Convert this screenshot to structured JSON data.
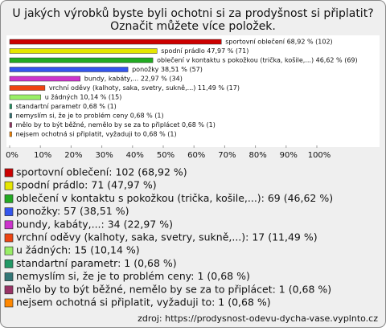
{
  "chart_data": {
    "type": "hbar",
    "title": [
      "U jakých výrobků byste byli ochotni si za prodyšnost si připlatit?",
      "Označit můžete více položek."
    ],
    "values": [
      68.92,
      47.97,
      46.62,
      38.51,
      22.97,
      11.49,
      10.14,
      0.68,
      0.68,
      0.68,
      0.68
    ],
    "value_labels": [
      "sportovní oblečení 68,92 % (102)",
      "spodní prádlo 47,97 % (71)",
      "oblečení v kontaktu s pokožkou (trička, košile,...) 46,62 % (69)",
      "ponožky 38,51 % (57)",
      "bundy, kabáty,... 22,97 % (34)",
      "vrchní oděvy (kalhoty, saka, svetry, sukně,...) 11,49 % (17)",
      "u žádných 10,14 % (15)",
      "standartní parametr 0,68 % (1)",
      "nemyslím si, že je to problém ceny 0,68 % (1)",
      "mělo by to být běžné, nemělo by se za to připlácet 0,68 % (1)",
      "nejsem ochotná si připlatit, vyžaduji to 0,68 % (1)"
    ],
    "legend_labels": [
      "sportovní oblečení: 102 (68,92 %)",
      "spodní prádlo: 71 (47,97 %)",
      "oblečení v kontaktu s pokožkou (trička, košile,...): 69 (46,62 %)",
      "ponožky: 57 (38,51 %)",
      "bundy, kabáty,...: 34 (22,97 %)",
      "vrchní oděvy (kalhoty, saka, svetry, sukně,...): 17 (11,49 %)",
      "u žádných: 15 (10,14 %)",
      "standartní parametr: 1 (0,68 %)",
      "nemyslím si, že je to problém ceny: 1 (0,68 %)",
      "mělo by to být běžné, nemělo by se za to připlácet: 1 (0,68 %)",
      "nejsem ochotná si připlatit, vyžaduji to: 1 (0,68 %)"
    ],
    "colors": [
      "#cc0000",
      "#e6e600",
      "#22aa22",
      "#3355ee",
      "#cc33cc",
      "#ee4411",
      "#99ee66",
      "#229966",
      "#337777",
      "#993366",
      "#ff8800"
    ],
    "xlim": [
      0,
      100
    ],
    "xticks": [
      {
        "value": 0,
        "label": "0%"
      },
      {
        "value": 10,
        "label": "10%"
      },
      {
        "value": 20,
        "label": "20%"
      },
      {
        "value": 30,
        "label": "30%"
      },
      {
        "value": 40,
        "label": "40%"
      },
      {
        "value": 50,
        "label": "50%"
      },
      {
        "value": 60,
        "label": "60%"
      },
      {
        "value": 70,
        "label": "70%"
      },
      {
        "value": 80,
        "label": "80%"
      },
      {
        "value": 90,
        "label": "90%"
      },
      {
        "value": 100,
        "label": "100%"
      }
    ],
    "source": "zdroj: https://prodysnost-odevu-dycha-vase.vyplnto.cz"
  }
}
